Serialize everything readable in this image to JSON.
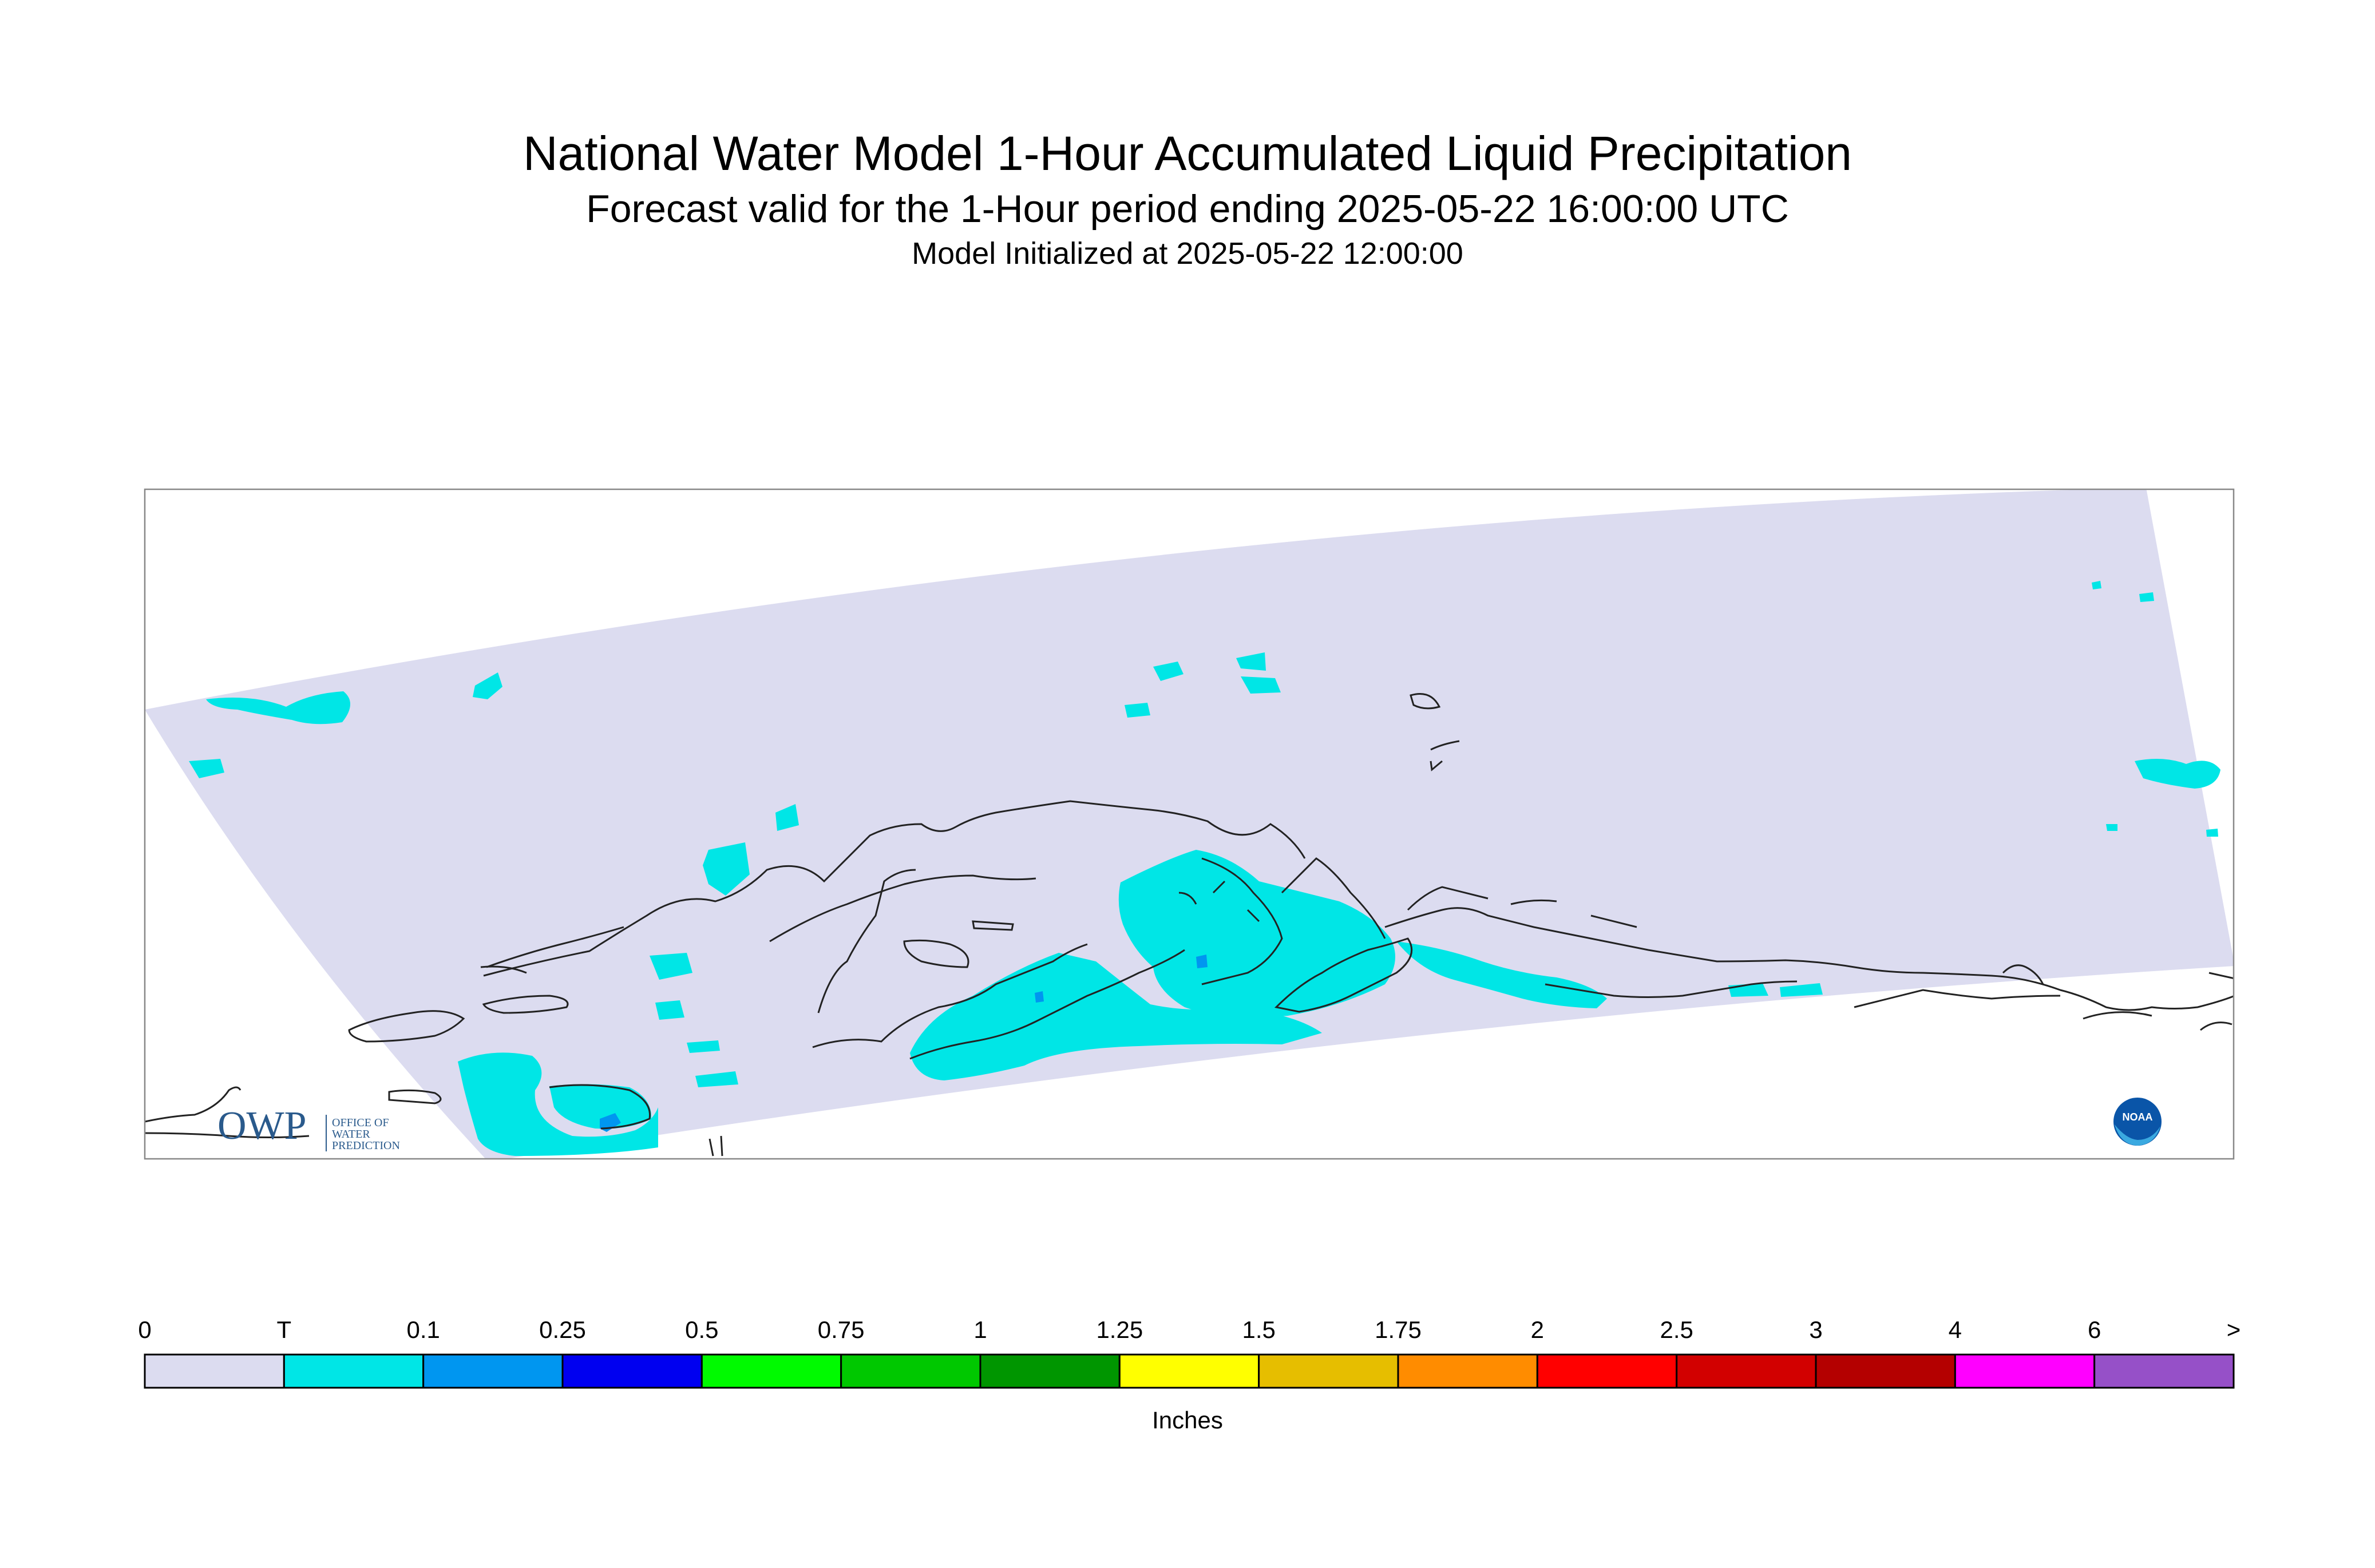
{
  "title": "National Water Model 1-Hour Accumulated Liquid Precipitation",
  "subtitle": "Forecast valid for the 1-Hour period ending 2025-05-22 16:00:00 UTC",
  "init": "Model Initialized at 2025-05-22 12:00:00",
  "logos": {
    "owp_text": "OWP",
    "owp_line1": "OFFICE OF",
    "owp_line2": "WATER",
    "owp_line3": "PREDICTION",
    "noaa_text": "NOAA"
  },
  "legend": {
    "units": "Inches",
    "labels": [
      "0",
      "T",
      "0.1",
      "0.25",
      "0.5",
      "0.75",
      "1",
      "1.25",
      "1.5",
      "1.75",
      "2",
      "2.5",
      "3",
      "4",
      "6",
      ">"
    ],
    "colors": [
      "#dcdcf0",
      "#00e6e6",
      "#0096f0",
      "#0000f0",
      "#00fa00",
      "#00c800",
      "#009600",
      "#ffff00",
      "#e6be00",
      "#ff8c00",
      "#ff0000",
      "#d20000",
      "#b40000",
      "#ff00ff",
      "#9650c8"
    ]
  },
  "colors": {
    "domain": "#dcdcf0",
    "trace": "#00e6e6",
    "light": "#0096f0",
    "coast": "#222222",
    "frame": "#888888"
  }
}
